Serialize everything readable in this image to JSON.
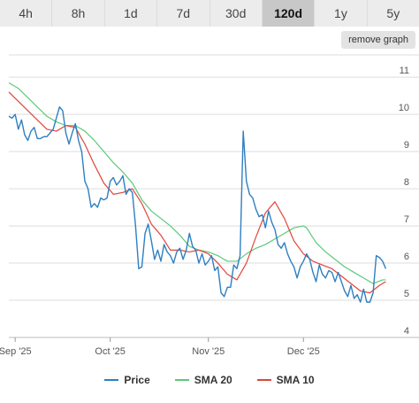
{
  "tabs": [
    {
      "label": "4h",
      "active": false
    },
    {
      "label": "8h",
      "active": false
    },
    {
      "label": "1d",
      "active": false
    },
    {
      "label": "7d",
      "active": false
    },
    {
      "label": "30d",
      "active": false
    },
    {
      "label": "120d",
      "active": true
    },
    {
      "label": "1y",
      "active": false
    },
    {
      "label": "5y",
      "active": false
    }
  ],
  "remove_graph_label": "remove graph",
  "legend": {
    "price": "Price",
    "sma20": "SMA 20",
    "sma10": "SMA 10"
  },
  "colors": {
    "price": "#2f7fc1",
    "sma20": "#5cc97a",
    "sma10": "#e0453a",
    "grid": "#dddddd",
    "axis": "#555555"
  },
  "chart_data": {
    "type": "line",
    "title": "",
    "xlabel": "",
    "ylabel": "",
    "ylim": [
      4,
      11.6
    ],
    "y_ticks": [
      4,
      5,
      6,
      7,
      8,
      9,
      10,
      11
    ],
    "y_tick_labels": [
      "4",
      "5",
      "6",
      "7",
      "8",
      "9",
      "10",
      "11"
    ],
    "y_axis_position": "right",
    "x_range": [
      "2025-08-30",
      "2025-12-28"
    ],
    "x_ticks": [
      {
        "date": "2025-09-01",
        "label": "Sep '25"
      },
      {
        "date": "2025-10-01",
        "label": "Oct '25"
      },
      {
        "date": "2025-11-01",
        "label": "Nov '25"
      },
      {
        "date": "2025-12-01",
        "label": "Dec '25"
      }
    ],
    "grid": true,
    "legend_position": "bottom",
    "series": [
      {
        "name": "Price",
        "color_key": "price",
        "points": [
          [
            "2025-08-30",
            9.95
          ],
          [
            "2025-08-31",
            9.9
          ],
          [
            "2025-09-01",
            10.0
          ],
          [
            "2025-09-02",
            9.6
          ],
          [
            "2025-09-03",
            9.85
          ],
          [
            "2025-09-04",
            9.45
          ],
          [
            "2025-09-05",
            9.3
          ],
          [
            "2025-09-06",
            9.55
          ],
          [
            "2025-09-07",
            9.65
          ],
          [
            "2025-09-08",
            9.35
          ],
          [
            "2025-09-09",
            9.35
          ],
          [
            "2025-09-10",
            9.4
          ],
          [
            "2025-09-11",
            9.4
          ],
          [
            "2025-09-12",
            9.5
          ],
          [
            "2025-09-13",
            9.6
          ],
          [
            "2025-09-14",
            9.9
          ],
          [
            "2025-09-15",
            10.2
          ],
          [
            "2025-09-16",
            10.1
          ],
          [
            "2025-09-17",
            9.5
          ],
          [
            "2025-09-18",
            9.2
          ],
          [
            "2025-09-19",
            9.5
          ],
          [
            "2025-09-20",
            9.75
          ],
          [
            "2025-09-21",
            9.3
          ],
          [
            "2025-09-22",
            9.0
          ],
          [
            "2025-09-23",
            8.2
          ],
          [
            "2025-09-24",
            8.0
          ],
          [
            "2025-09-25",
            7.5
          ],
          [
            "2025-09-26",
            7.6
          ],
          [
            "2025-09-27",
            7.5
          ],
          [
            "2025-09-28",
            7.75
          ],
          [
            "2025-09-29",
            7.7
          ],
          [
            "2025-09-30",
            7.75
          ],
          [
            "2025-10-01",
            8.2
          ],
          [
            "2025-10-02",
            8.3
          ],
          [
            "2025-10-03",
            8.1
          ],
          [
            "2025-10-04",
            8.2
          ],
          [
            "2025-10-05",
            8.35
          ],
          [
            "2025-10-06",
            7.85
          ],
          [
            "2025-10-07",
            8.0
          ],
          [
            "2025-10-08",
            7.9
          ],
          [
            "2025-10-09",
            7.0
          ],
          [
            "2025-10-10",
            5.85
          ],
          [
            "2025-10-11",
            5.9
          ],
          [
            "2025-10-12",
            6.8
          ],
          [
            "2025-10-13",
            7.05
          ],
          [
            "2025-10-14",
            6.6
          ],
          [
            "2025-10-15",
            6.1
          ],
          [
            "2025-10-16",
            6.35
          ],
          [
            "2025-10-17",
            6.05
          ],
          [
            "2025-10-18",
            6.5
          ],
          [
            "2025-10-19",
            6.3
          ],
          [
            "2025-10-20",
            6.2
          ],
          [
            "2025-10-21",
            6.0
          ],
          [
            "2025-10-22",
            6.3
          ],
          [
            "2025-10-23",
            6.4
          ],
          [
            "2025-10-24",
            6.1
          ],
          [
            "2025-10-25",
            6.35
          ],
          [
            "2025-10-26",
            6.8
          ],
          [
            "2025-10-27",
            6.45
          ],
          [
            "2025-10-28",
            6.35
          ],
          [
            "2025-10-29",
            6.0
          ],
          [
            "2025-10-30",
            6.25
          ],
          [
            "2025-10-31",
            5.95
          ],
          [
            "2025-11-01",
            6.05
          ],
          [
            "2025-11-02",
            6.2
          ],
          [
            "2025-11-03",
            5.8
          ],
          [
            "2025-11-04",
            5.9
          ],
          [
            "2025-11-05",
            5.2
          ],
          [
            "2025-11-06",
            5.1
          ],
          [
            "2025-11-07",
            5.35
          ],
          [
            "2025-11-08",
            5.35
          ],
          [
            "2025-11-09",
            5.95
          ],
          [
            "2025-11-10",
            5.85
          ],
          [
            "2025-11-11",
            6.2
          ],
          [
            "2025-11-12",
            9.55
          ],
          [
            "2025-11-13",
            8.2
          ],
          [
            "2025-11-14",
            7.85
          ],
          [
            "2025-11-15",
            7.75
          ],
          [
            "2025-11-16",
            7.45
          ],
          [
            "2025-11-17",
            7.25
          ],
          [
            "2025-11-18",
            7.3
          ],
          [
            "2025-11-19",
            6.95
          ],
          [
            "2025-11-20",
            7.4
          ],
          [
            "2025-11-21",
            7.1
          ],
          [
            "2025-11-22",
            6.9
          ],
          [
            "2025-11-23",
            6.5
          ],
          [
            "2025-11-24",
            6.4
          ],
          [
            "2025-11-25",
            6.55
          ],
          [
            "2025-11-26",
            6.25
          ],
          [
            "2025-11-27",
            6.05
          ],
          [
            "2025-11-28",
            5.9
          ],
          [
            "2025-11-29",
            5.6
          ],
          [
            "2025-11-30",
            5.9
          ],
          [
            "2025-12-01",
            6.05
          ],
          [
            "2025-12-02",
            6.25
          ],
          [
            "2025-12-03",
            6.1
          ],
          [
            "2025-12-04",
            5.75
          ],
          [
            "2025-12-05",
            5.5
          ],
          [
            "2025-12-06",
            5.95
          ],
          [
            "2025-12-07",
            5.7
          ],
          [
            "2025-12-08",
            5.6
          ],
          [
            "2025-12-09",
            5.8
          ],
          [
            "2025-12-10",
            5.75
          ],
          [
            "2025-12-11",
            5.5
          ],
          [
            "2025-12-12",
            5.75
          ],
          [
            "2025-12-13",
            5.5
          ],
          [
            "2025-12-14",
            5.25
          ],
          [
            "2025-12-15",
            5.1
          ],
          [
            "2025-12-16",
            5.4
          ],
          [
            "2025-12-17",
            5.05
          ],
          [
            "2025-12-18",
            5.15
          ],
          [
            "2025-12-19",
            4.95
          ],
          [
            "2025-12-20",
            5.3
          ],
          [
            "2025-12-21",
            4.95
          ],
          [
            "2025-12-22",
            4.95
          ],
          [
            "2025-12-23",
            5.2
          ],
          [
            "2025-12-24",
            6.2
          ],
          [
            "2025-12-25",
            6.15
          ],
          [
            "2025-12-26",
            6.05
          ],
          [
            "2025-12-27",
            5.85
          ]
        ]
      },
      {
        "name": "SMA 20",
        "color_key": "sma20",
        "points": [
          [
            "2025-08-30",
            10.85
          ],
          [
            "2025-09-02",
            10.7
          ],
          [
            "2025-09-05",
            10.45
          ],
          [
            "2025-09-08",
            10.2
          ],
          [
            "2025-09-11",
            9.95
          ],
          [
            "2025-09-14",
            9.8
          ],
          [
            "2025-09-17",
            9.7
          ],
          [
            "2025-09-20",
            9.7
          ],
          [
            "2025-09-23",
            9.55
          ],
          [
            "2025-09-26",
            9.3
          ],
          [
            "2025-09-29",
            9.0
          ],
          [
            "2025-10-02",
            8.7
          ],
          [
            "2025-10-05",
            8.45
          ],
          [
            "2025-10-08",
            8.15
          ],
          [
            "2025-10-11",
            7.7
          ],
          [
            "2025-10-14",
            7.4
          ],
          [
            "2025-10-17",
            7.2
          ],
          [
            "2025-10-20",
            7.0
          ],
          [
            "2025-10-23",
            6.75
          ],
          [
            "2025-10-26",
            6.45
          ],
          [
            "2025-10-29",
            6.35
          ],
          [
            "2025-11-01",
            6.3
          ],
          [
            "2025-11-04",
            6.2
          ],
          [
            "2025-11-07",
            6.05
          ],
          [
            "2025-11-10",
            6.05
          ],
          [
            "2025-11-13",
            6.25
          ],
          [
            "2025-11-16",
            6.4
          ],
          [
            "2025-11-19",
            6.5
          ],
          [
            "2025-11-22",
            6.65
          ],
          [
            "2025-11-25",
            6.8
          ],
          [
            "2025-11-28",
            6.95
          ],
          [
            "2025-12-01",
            7.0
          ],
          [
            "2025-12-02",
            6.95
          ],
          [
            "2025-12-05",
            6.55
          ],
          [
            "2025-12-08",
            6.3
          ],
          [
            "2025-12-11",
            6.1
          ],
          [
            "2025-12-14",
            5.9
          ],
          [
            "2025-12-17",
            5.75
          ],
          [
            "2025-12-20",
            5.6
          ],
          [
            "2025-12-23",
            5.45
          ],
          [
            "2025-12-26",
            5.55
          ],
          [
            "2025-12-27",
            5.55
          ]
        ]
      },
      {
        "name": "SMA 10",
        "color_key": "sma10",
        "points": [
          [
            "2025-08-30",
            10.6
          ],
          [
            "2025-09-02",
            10.35
          ],
          [
            "2025-09-05",
            10.1
          ],
          [
            "2025-09-08",
            9.85
          ],
          [
            "2025-09-11",
            9.6
          ],
          [
            "2025-09-14",
            9.55
          ],
          [
            "2025-09-17",
            9.7
          ],
          [
            "2025-09-20",
            9.65
          ],
          [
            "2025-09-23",
            9.2
          ],
          [
            "2025-09-26",
            8.65
          ],
          [
            "2025-09-29",
            8.15
          ],
          [
            "2025-10-02",
            7.85
          ],
          [
            "2025-10-05",
            7.9
          ],
          [
            "2025-10-08",
            8.0
          ],
          [
            "2025-10-11",
            7.6
          ],
          [
            "2025-10-14",
            7.05
          ],
          [
            "2025-10-17",
            6.75
          ],
          [
            "2025-10-20",
            6.35
          ],
          [
            "2025-10-23",
            6.35
          ],
          [
            "2025-10-26",
            6.3
          ],
          [
            "2025-10-29",
            6.35
          ],
          [
            "2025-11-01",
            6.25
          ],
          [
            "2025-11-04",
            6.0
          ],
          [
            "2025-11-07",
            5.7
          ],
          [
            "2025-11-10",
            5.55
          ],
          [
            "2025-11-13",
            6.0
          ],
          [
            "2025-11-16",
            6.7
          ],
          [
            "2025-11-19",
            7.35
          ],
          [
            "2025-11-22",
            7.65
          ],
          [
            "2025-11-25",
            7.2
          ],
          [
            "2025-11-28",
            6.6
          ],
          [
            "2025-12-01",
            6.25
          ],
          [
            "2025-12-04",
            6.05
          ],
          [
            "2025-12-07",
            5.95
          ],
          [
            "2025-12-10",
            5.85
          ],
          [
            "2025-12-13",
            5.65
          ],
          [
            "2025-12-16",
            5.45
          ],
          [
            "2025-12-19",
            5.25
          ],
          [
            "2025-12-22",
            5.2
          ],
          [
            "2025-12-25",
            5.4
          ],
          [
            "2025-12-27",
            5.5
          ]
        ]
      }
    ]
  }
}
